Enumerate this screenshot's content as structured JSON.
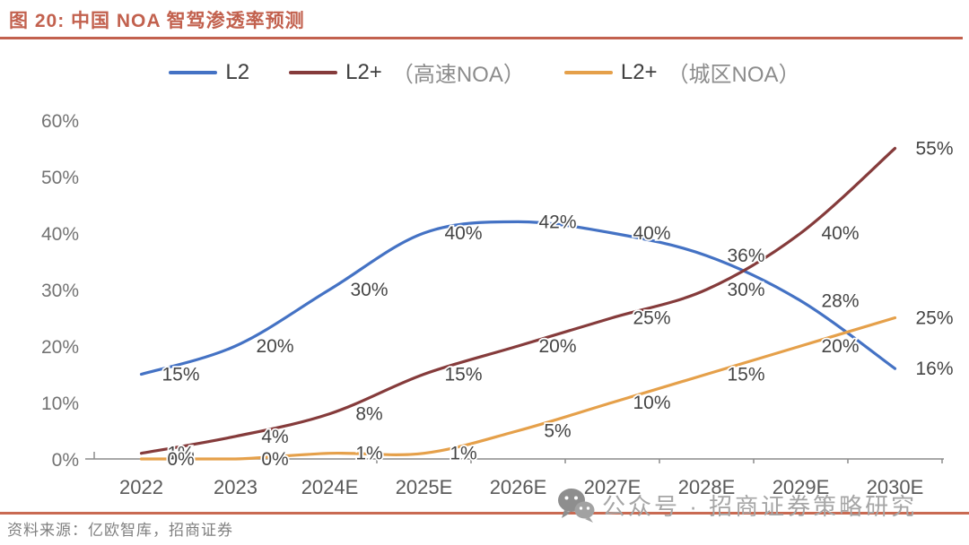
{
  "title": "图 20:  中国 NOA 智驾渗透率预测",
  "source": "资料来源：亿欧智库，招商证券",
  "watermark": "公众号 · 招商证券策略研究",
  "colors": {
    "accent": "#C2614E",
    "separator": "#C96A52",
    "axis": "#8C8C8C",
    "y_tick_label": "#737373",
    "x_tick_label": "#595959",
    "data_label": "#454545",
    "legend_main": "#3F3F3F",
    "legend_sub": "#8C8C8C",
    "watermark_gray": "#A6A6A6",
    "source_gray": "#808080"
  },
  "chart_data": {
    "type": "line",
    "title": "中国 NOA 智驾渗透率预测",
    "categories": [
      "2022",
      "2023",
      "2024E",
      "2025E",
      "2026E",
      "2027E",
      "2028E",
      "2029E",
      "2030E"
    ],
    "series": [
      {
        "name": "L2",
        "name_sub": "",
        "color": "#4472C4",
        "values": [
          15,
          20,
          30,
          40,
          42,
          40,
          36,
          28,
          16
        ]
      },
      {
        "name": "L2+",
        "name_sub": "（高速NOA）",
        "color": "#853B3B",
        "values": [
          1,
          4,
          8,
          15,
          20,
          25,
          30,
          40,
          55
        ]
      },
      {
        "name": "L2+",
        "name_sub": "（城区NOA）",
        "color": "#E5A04A",
        "values": [
          0,
          0,
          1,
          1,
          5,
          10,
          15,
          20,
          25
        ]
      }
    ],
    "unit": "%",
    "ylim": [
      0,
      60
    ],
    "ytick_step": 10,
    "grid": false,
    "data_labels": true,
    "legend_position": "top",
    "smoothed_lines": true
  }
}
